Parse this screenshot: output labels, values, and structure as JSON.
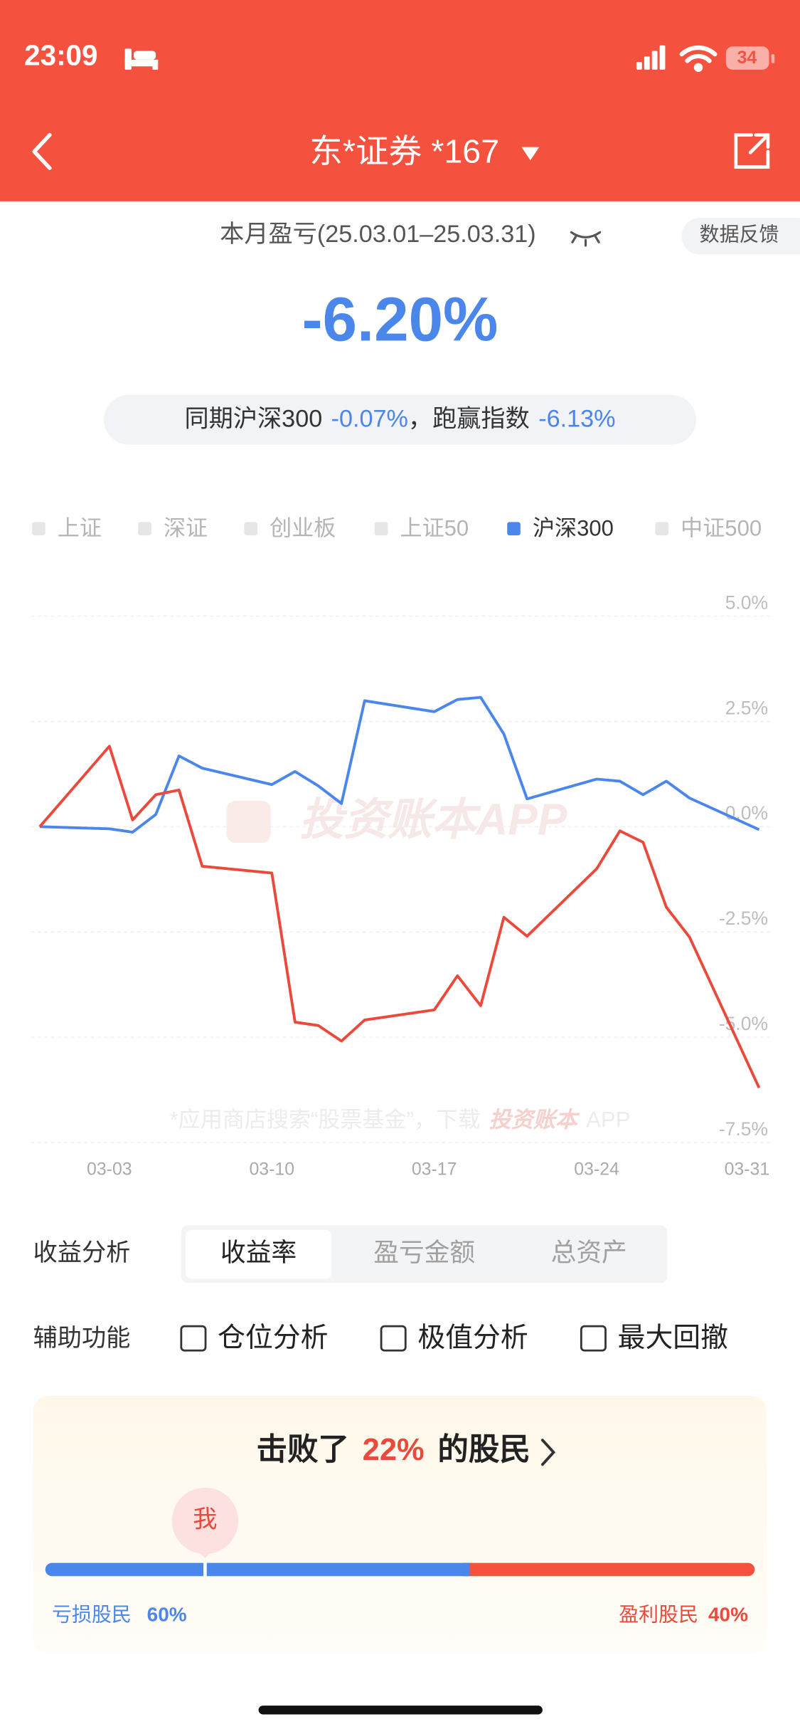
{
  "status_bar": {
    "time": "23:09",
    "battery": "34"
  },
  "nav": {
    "title": "东*证券 *167"
  },
  "summary": {
    "period": "本月盈亏(25.03.01–25.03.31)",
    "feedback": "数据反馈",
    "return": "-6.20%",
    "benchmark_label": "同期沪深300",
    "benchmark_return": "-0.07%",
    "excess_label": "，跑赢指数",
    "excess_return": "-6.13%"
  },
  "chart_data": {
    "type": "line",
    "legend": [
      {
        "name": "上证",
        "active": false
      },
      {
        "name": "深证",
        "active": false
      },
      {
        "name": "创业板",
        "active": false
      },
      {
        "name": "上证50",
        "active": false
      },
      {
        "name": "沪深300",
        "active": true
      },
      {
        "name": "中证500",
        "active": false
      }
    ],
    "x": [
      0,
      3,
      4,
      5,
      6,
      7,
      10,
      11,
      12,
      13,
      14,
      17,
      18,
      19,
      20,
      21,
      24,
      25,
      26,
      27,
      28,
      31
    ],
    "xlim": [
      0,
      31
    ],
    "xticks": [
      {
        "value": 3,
        "label": "03-03"
      },
      {
        "value": 10,
        "label": "03-10"
      },
      {
        "value": 17,
        "label": "03-17"
      },
      {
        "value": 24,
        "label": "03-24"
      },
      {
        "value": 31,
        "label": "03-31"
      }
    ],
    "ylim": [
      -7.5,
      5
    ],
    "yticks": [
      {
        "value": 5,
        "label": "5.0%"
      },
      {
        "value": 2.5,
        "label": "2.5%"
      },
      {
        "value": 0,
        "label": "0.0%"
      },
      {
        "value": -2.5,
        "label": "-2.5%"
      },
      {
        "value": -5,
        "label": "-5.0%"
      },
      {
        "value": -7.5,
        "label": "-7.5%"
      }
    ],
    "grid": true,
    "series": [
      {
        "color": "#4b86ea",
        "values": [
          0,
          -0.05,
          -0.13,
          0.29,
          1.68,
          1.39,
          1.0,
          1.31,
          0.97,
          0.55,
          2.99,
          2.73,
          3.02,
          3.07,
          2.2,
          0.66,
          1.13,
          1.08,
          0.76,
          1.08,
          0.68,
          -0.07
        ]
      },
      {
        "color": "#ea4a3c",
        "values": [
          0,
          1.91,
          0.16,
          0.76,
          0.87,
          -0.94,
          -1.1,
          -4.64,
          -4.72,
          -5.09,
          -4.59,
          -4.35,
          -3.54,
          -4.25,
          -2.15,
          -2.6,
          -1.0,
          -0.1,
          -0.37,
          -1.91,
          -2.62,
          -6.2
        ]
      }
    ],
    "watermark": "投资账本APP",
    "watermark_footer": [
      "*应用商店搜索“股票基金”，下载",
      "投资账本",
      "APP"
    ]
  },
  "analysis": {
    "label": "收益分析",
    "tabs": [
      "收益率",
      "盈亏金额",
      "总资产"
    ],
    "active": 0
  },
  "tools": {
    "label": "辅助功能",
    "options": [
      "仓位分析",
      "极值分析",
      "最大回撤"
    ]
  },
  "ranking": {
    "prefix": "击败了",
    "beat": {
      "value": 22,
      "label": "22%"
    },
    "suffix": "的股民",
    "me": "我",
    "loss": {
      "name": "亏损股民",
      "value": 60,
      "label": "60%"
    },
    "profit": {
      "name": "盈利股民",
      "value": 40,
      "label": "40%"
    }
  }
}
